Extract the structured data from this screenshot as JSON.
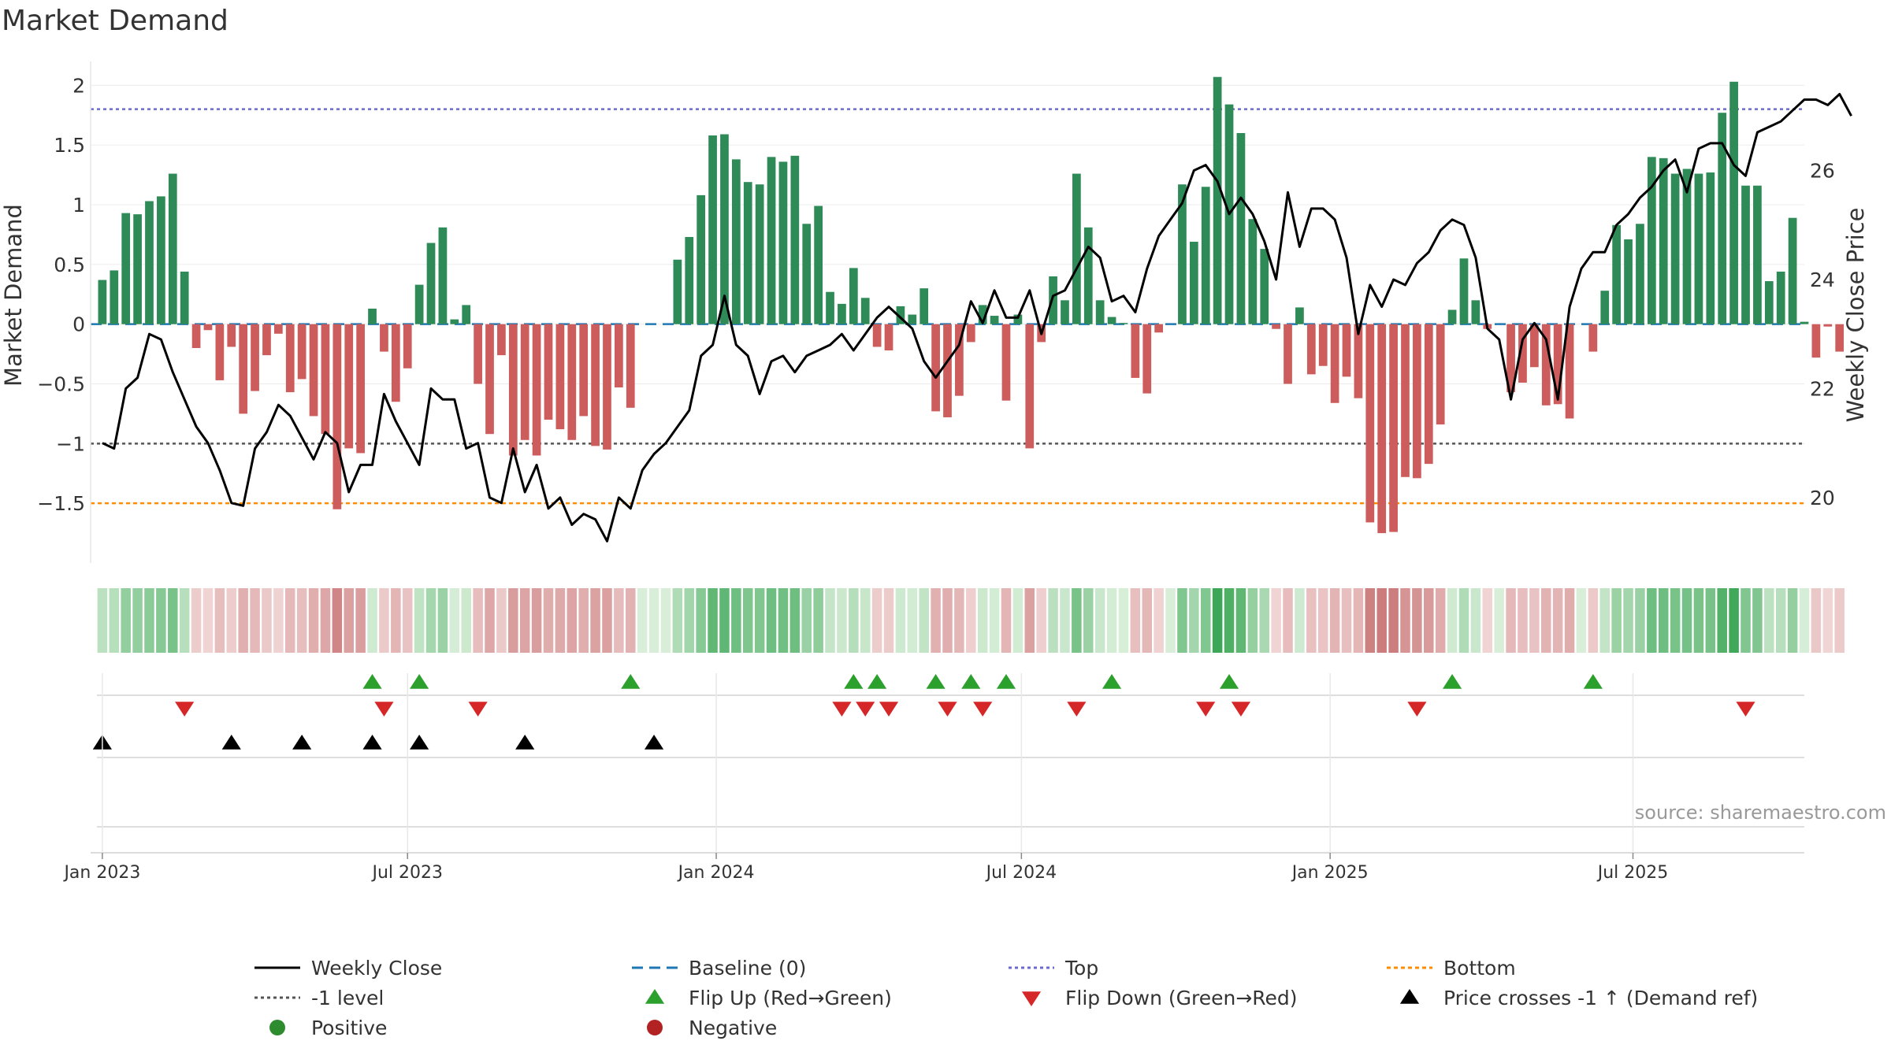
{
  "chart_data": {
    "type": "bar",
    "title": "Market Demand",
    "ylabel": "Market Demand",
    "y2label": "Weekly Close Price",
    "ylim": [
      -2.0,
      2.2
    ],
    "y2lim": [
      18.8,
      28.0
    ],
    "yticks": [
      {
        "v": 2,
        "label": "2"
      },
      {
        "v": 1.5,
        "label": "1.5"
      },
      {
        "v": 1,
        "label": "1"
      },
      {
        "v": 0.5,
        "label": "0.5"
      },
      {
        "v": 0,
        "label": "0"
      },
      {
        "v": -0.5,
        "label": "−0.5"
      },
      {
        "v": -1,
        "label": "−1"
      },
      {
        "v": -1.5,
        "label": "−1.5"
      }
    ],
    "y2ticks": [
      {
        "v": 26,
        "label": "26"
      },
      {
        "v": 24,
        "label": "24"
      },
      {
        "v": 22,
        "label": "22"
      },
      {
        "v": 20,
        "label": "20"
      }
    ],
    "xrange_week": [
      -1,
      145
    ],
    "xticks": [
      {
        "week": 0,
        "label": "Jan 2023"
      },
      {
        "week": 26,
        "label": "Jul 2023"
      },
      {
        "week": 52.3,
        "label": "Jan 2024"
      },
      {
        "week": 78.3,
        "label": "Jul 2024"
      },
      {
        "week": 104.6,
        "label": "Jan 2025"
      },
      {
        "week": 130.4,
        "label": "Jul 2025"
      }
    ],
    "reference_lines": {
      "top": 1.8,
      "bottom": -1.5,
      "minus_one": -1.0,
      "baseline": 0
    },
    "demand": [
      0.37,
      0.45,
      0.93,
      0.92,
      1.03,
      1.07,
      1.26,
      0.44,
      -0.2,
      -0.05,
      -0.47,
      -0.19,
      -0.75,
      -0.56,
      -0.26,
      -0.08,
      -0.57,
      -0.46,
      -0.77,
      -0.92,
      -1.55,
      -1.04,
      -1.08,
      0.13,
      -0.23,
      -0.65,
      -0.37,
      0.33,
      0.68,
      0.81,
      0.04,
      0.16,
      -0.5,
      -0.92,
      -0.26,
      -1.1,
      -0.97,
      -1.1,
      -0.8,
      -0.88,
      -0.97,
      -0.77,
      -1.02,
      -1.05,
      -0.53,
      -0.7,
      0.0,
      0.0,
      0.0,
      0.54,
      0.73,
      1.08,
      1.58,
      1.59,
      1.38,
      1.19,
      1.17,
      1.4,
      1.36,
      1.41,
      0.84,
      0.99,
      0.27,
      0.17,
      0.47,
      0.22,
      -0.19,
      -0.22,
      0.15,
      0.08,
      0.3,
      -0.73,
      -0.78,
      -0.6,
      -0.15,
      0.16,
      0.07,
      -0.64,
      0.08,
      -1.04,
      -0.15,
      0.4,
      0.2,
      1.26,
      0.81,
      0.2,
      0.06,
      0.01,
      -0.45,
      -0.58,
      -0.07,
      0.0,
      1.17,
      0.69,
      1.15,
      2.07,
      1.84,
      1.6,
      0.88,
      0.63,
      -0.04,
      -0.5,
      0.14,
      -0.42,
      -0.35,
      -0.66,
      -0.44,
      -0.62,
      -1.66,
      -1.75,
      -1.74,
      -1.28,
      -1.29,
      -1.17,
      -0.84,
      0.12,
      0.55,
      0.2,
      -0.04,
      0.0,
      -0.57,
      -0.49,
      -0.36,
      -0.68,
      -0.67,
      -0.79,
      0.0,
      -0.23,
      0.28,
      0.83,
      0.71,
      0.84,
      1.4,
      1.39,
      1.26,
      1.3,
      1.26,
      1.27,
      1.77,
      2.03,
      1.16,
      1.16,
      0.36,
      0.44,
      0.89,
      0.02,
      -0.28,
      -0.02,
      -0.23
    ],
    "close": [
      21.0,
      20.9,
      22.0,
      22.2,
      23.0,
      22.9,
      22.3,
      21.8,
      21.3,
      21.0,
      20.5,
      19.9,
      19.85,
      20.9,
      21.2,
      21.7,
      21.5,
      21.1,
      20.7,
      21.2,
      21.0,
      20.1,
      20.6,
      20.6,
      21.9,
      21.4,
      21.0,
      20.6,
      22.0,
      21.8,
      21.8,
      20.9,
      21.0,
      20.0,
      19.9,
      20.9,
      20.1,
      20.6,
      19.8,
      20.0,
      19.5,
      19.7,
      19.6,
      19.2,
      20.0,
      19.8,
      20.5,
      20.8,
      21.0,
      21.3,
      21.6,
      22.6,
      22.8,
      23.7,
      22.8,
      22.6,
      21.9,
      22.5,
      22.6,
      22.3,
      22.6,
      22.7,
      22.8,
      23.0,
      22.7,
      23.0,
      23.3,
      23.5,
      23.3,
      23.1,
      22.5,
      22.2,
      22.5,
      22.8,
      23.6,
      23.2,
      23.8,
      23.3,
      23.3,
      23.8,
      23.0,
      23.7,
      23.8,
      24.2,
      24.6,
      24.4,
      23.6,
      23.7,
      23.4,
      24.2,
      24.8,
      25.1,
      25.4,
      26.0,
      26.1,
      25.8,
      25.2,
      25.5,
      25.2,
      24.7,
      24.0,
      25.6,
      24.6,
      25.3,
      25.3,
      25.1,
      24.4,
      23.0,
      23.9,
      23.5,
      24.0,
      23.9,
      24.3,
      24.5,
      24.9,
      25.1,
      25.0,
      24.4,
      23.1,
      22.9,
      21.8,
      22.9,
      23.2,
      22.9,
      21.8,
      23.5,
      24.2,
      24.5,
      24.5,
      25.0,
      25.2,
      25.5,
      25.7,
      26.0,
      26.2,
      25.6,
      26.4,
      26.5,
      26.5,
      26.1,
      25.9,
      26.7,
      26.8,
      26.9,
      27.1,
      27.3,
      27.3,
      27.2,
      27.4,
      27.0
    ],
    "flip_up_weeks": [
      23,
      27,
      45,
      64,
      66,
      71,
      74,
      77,
      86,
      96,
      115,
      127
    ],
    "flip_down_weeks": [
      7,
      24,
      32,
      63,
      65,
      67,
      72,
      75,
      83,
      94,
      97,
      112,
      140
    ],
    "price_cross_weeks": [
      0,
      11,
      17,
      23,
      27,
      36,
      47
    ],
    "legend": [
      {
        "label": "Weekly Close",
        "marker": "line"
      },
      {
        "label": "Baseline (0)",
        "marker": "dash"
      },
      {
        "label": "Top",
        "marker": "dots-blue"
      },
      {
        "label": "Bottom",
        "marker": "dots-orange"
      },
      {
        "label": "-1 level",
        "marker": "dots-gray"
      },
      {
        "label": "Flip Up (Red→Green)",
        "marker": "tri-up-green"
      },
      {
        "label": "Flip Down (Green→Red)",
        "marker": "tri-down-red"
      },
      {
        "label": "Price crosses -1 ↑ (Demand ref)",
        "marker": "tri-up-black"
      },
      {
        "label": "Positive",
        "marker": "dot-green"
      },
      {
        "label": "Negative",
        "marker": "dot-red"
      }
    ],
    "source": "source: sharemaestro.com"
  },
  "colors": {
    "pos": "#2e8b57",
    "neg": "#cd5c5c",
    "close": "#000000",
    "baseline": "#1f77b4",
    "top": "#6b6bd0",
    "bottom": "#ff8c00",
    "minus_one": "#555555",
    "flip_up": "#2ca02c",
    "flip_down": "#d62728",
    "cross": "#000000",
    "positive_dot": "#2e8b2e",
    "negative_dot": "#b22222"
  }
}
